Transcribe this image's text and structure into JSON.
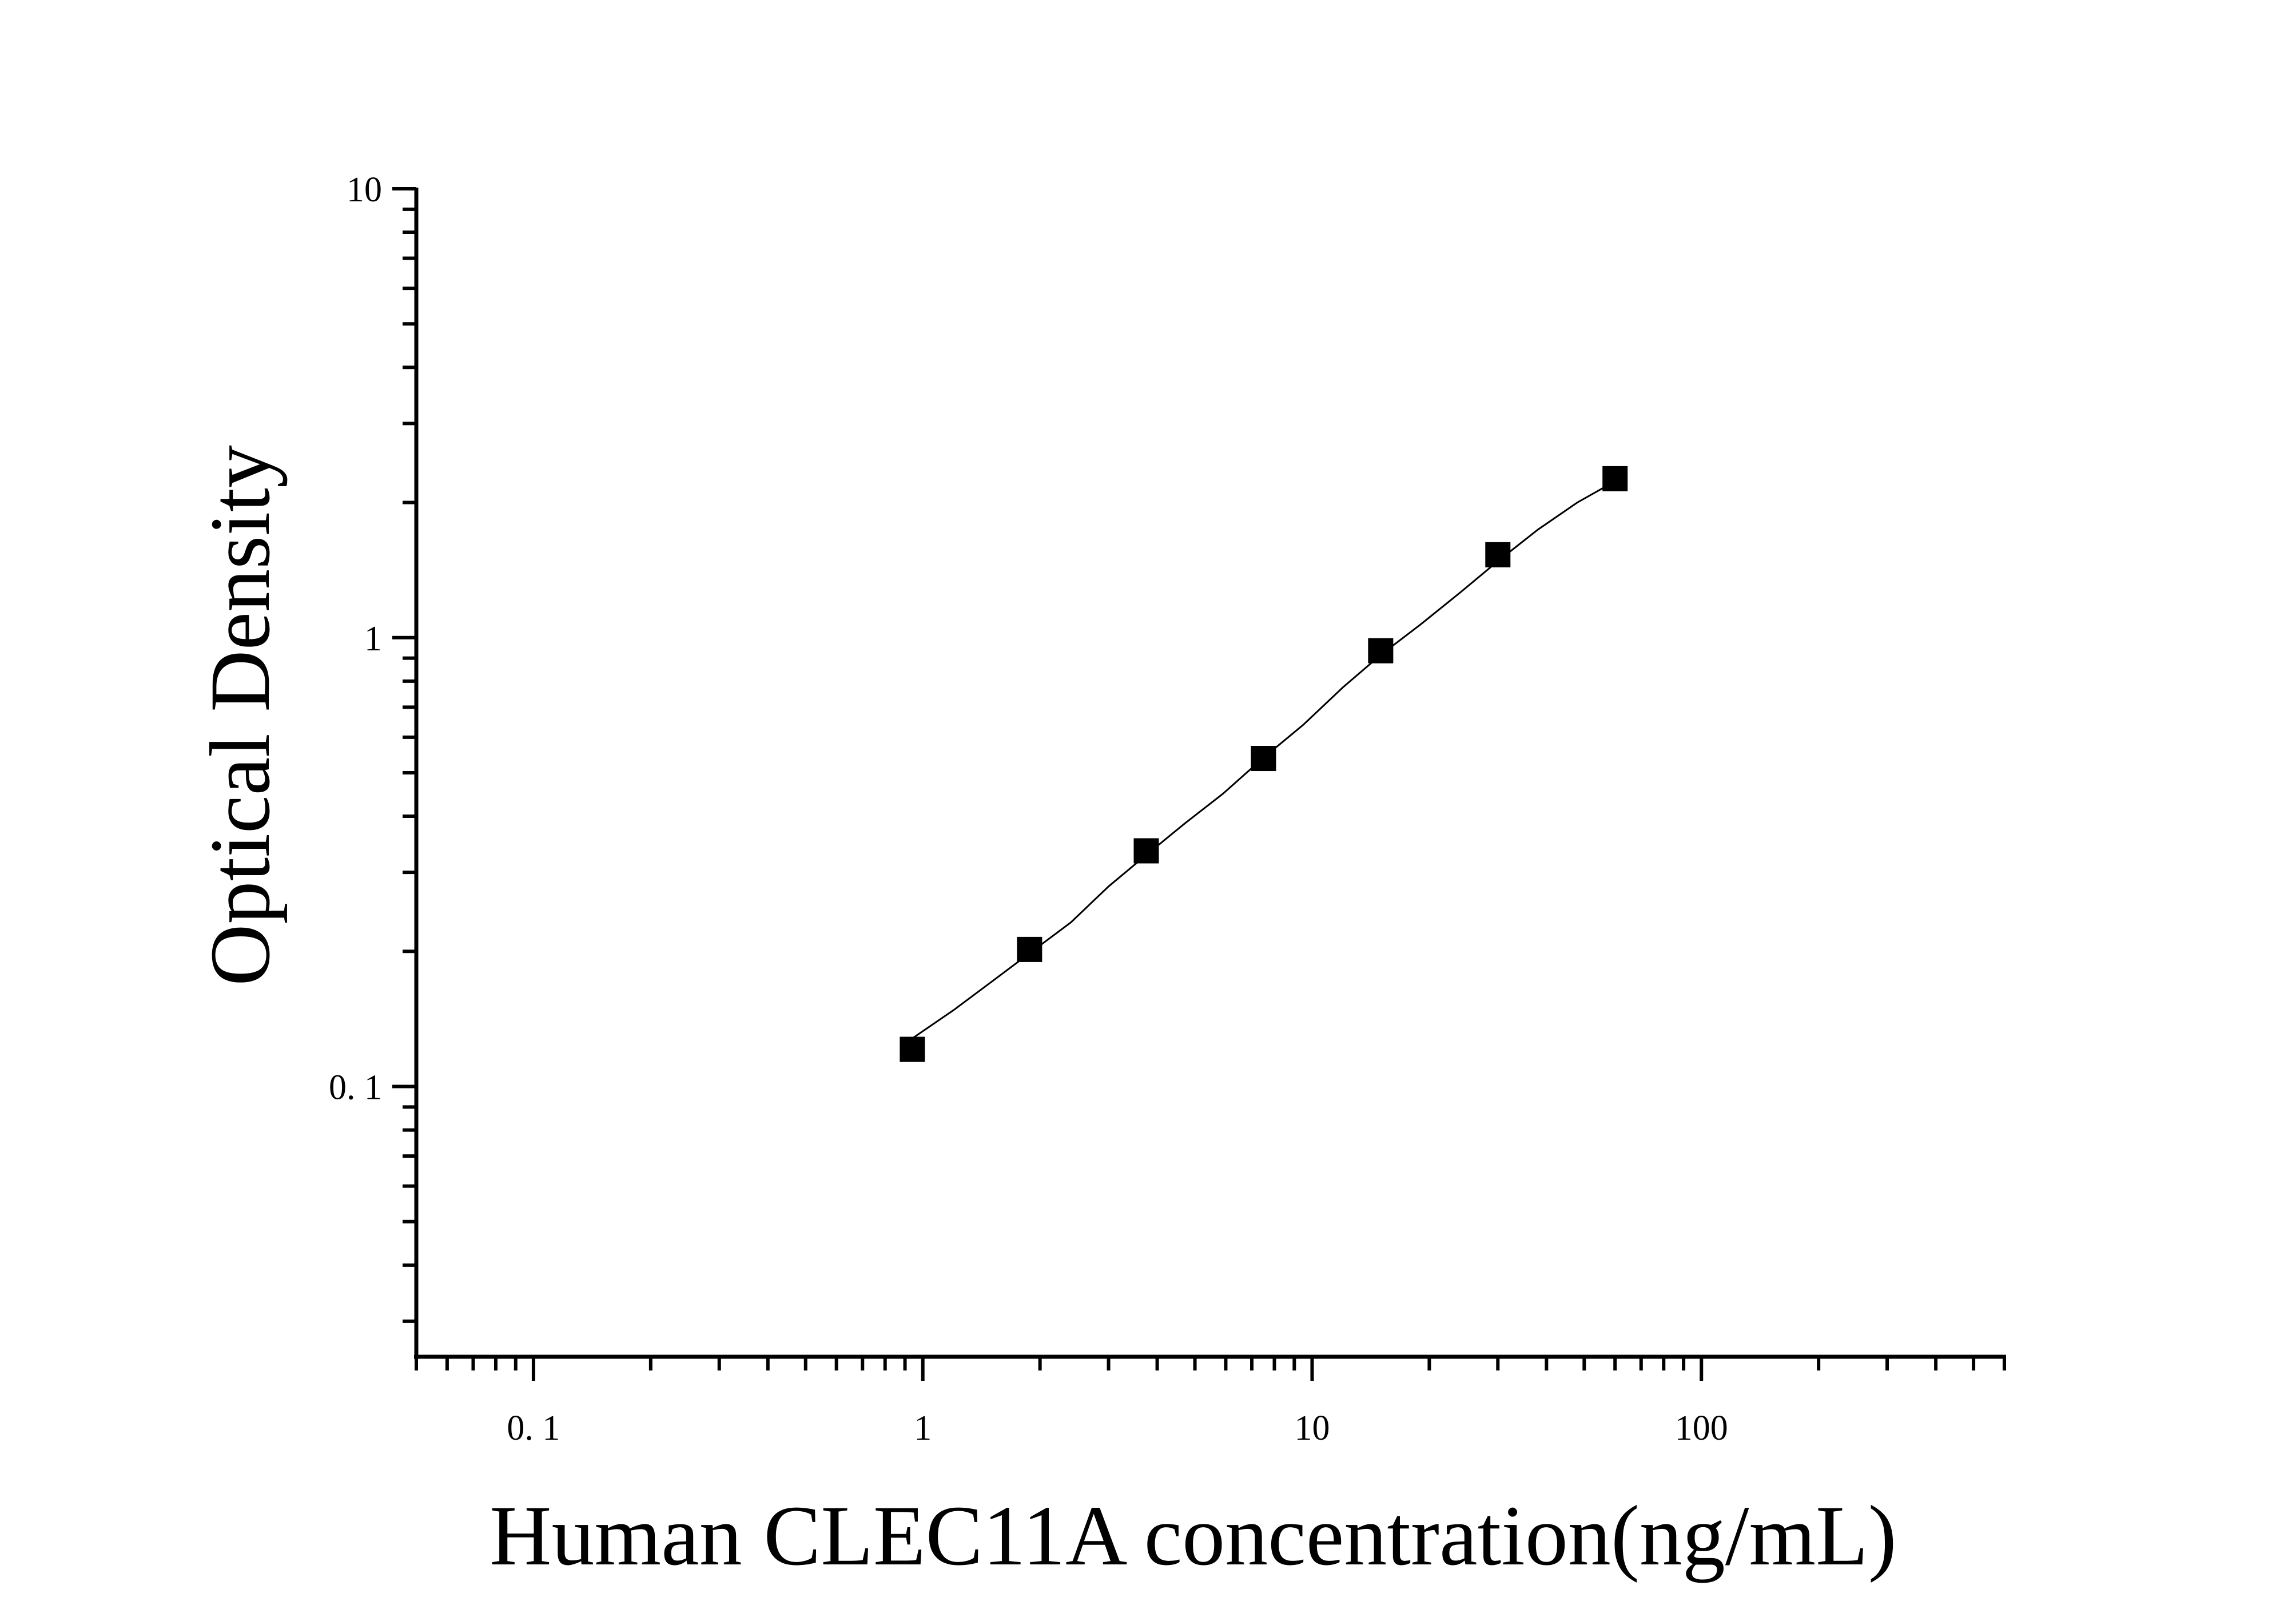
{
  "chart_data": {
    "type": "scatter",
    "xlabel": "Human CLEC11A concentration(ng/mL)",
    "ylabel": "Optical Density",
    "x_scale": "log",
    "y_scale": "log",
    "xlim": [
      0.05,
      600
    ],
    "ylim": [
      0.025,
      10
    ],
    "grid": false,
    "x_ticks": [
      0.1,
      1,
      10,
      100
    ],
    "x_tick_labels": [
      "0. 1",
      "1",
      "10",
      "100"
    ],
    "y_ticks": [
      0.1,
      1,
      10
    ],
    "y_tick_labels": [
      "0. 1",
      "1",
      "10"
    ],
    "series": [
      {
        "marker": "square",
        "color": "#000000",
        "x": [
          0.94,
          1.88,
          3.75,
          7.5,
          15,
          30,
          60
        ],
        "y": [
          0.121,
          0.202,
          0.335,
          0.538,
          0.935,
          1.53,
          2.26
        ]
      }
    ],
    "fit_curve": {
      "style": "thin-line",
      "color": "#000000",
      "x": [
        0.94,
        1.2,
        1.5,
        1.88,
        2.4,
        3.0,
        3.75,
        4.7,
        5.9,
        7.5,
        9.5,
        12,
        15,
        19,
        24,
        30,
        38,
        48,
        60
      ],
      "y": [
        0.128,
        0.148,
        0.171,
        0.198,
        0.232,
        0.279,
        0.328,
        0.385,
        0.449,
        0.54,
        0.64,
        0.775,
        0.915,
        1.07,
        1.26,
        1.48,
        1.74,
        2.0,
        2.23
      ]
    }
  }
}
